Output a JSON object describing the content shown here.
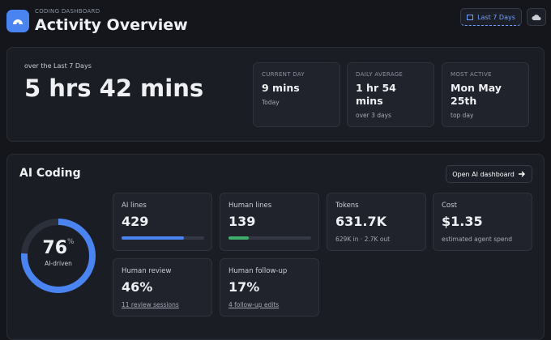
{
  "header": {
    "eyebrow": "CODING DASHBOARD",
    "title": "Activity Overview",
    "range_button": "Last 7 Days"
  },
  "summary": {
    "caption": "over the Last 7 Days",
    "total": "5 hrs 42 mins",
    "stats": [
      {
        "label": "CURRENT DAY",
        "value": "9 mins",
        "note": "Today"
      },
      {
        "label": "DAILY AVERAGE",
        "value": "1 hr 54 mins",
        "note": "over 3 days"
      },
      {
        "label": "MOST ACTIVE",
        "value": "Mon May 25th",
        "note": "top day"
      }
    ]
  },
  "ai_coding": {
    "title": "AI Coding",
    "button": "Open AI dashboard",
    "ai_percent": 76,
    "percent_sign": "%",
    "ai_label": "AI-driven",
    "cards": [
      {
        "label": "AI lines",
        "value": 429,
        "bar_color": "#4a84f0"
      },
      {
        "label": "Human lines",
        "value": 139,
        "bar_color": "#3fae6a"
      },
      {
        "label": "Tokens",
        "value": "631.7K",
        "note": "629K in · 2.7K out"
      },
      {
        "label": "Cost",
        "value": "$1.35",
        "note": "estimated agent spend"
      },
      {
        "label": "Human review",
        "value": "46%",
        "note": "11 review sessions"
      },
      {
        "label": "Human follow-up",
        "value": "17%",
        "note": "4 follow-up edits"
      }
    ]
  }
}
